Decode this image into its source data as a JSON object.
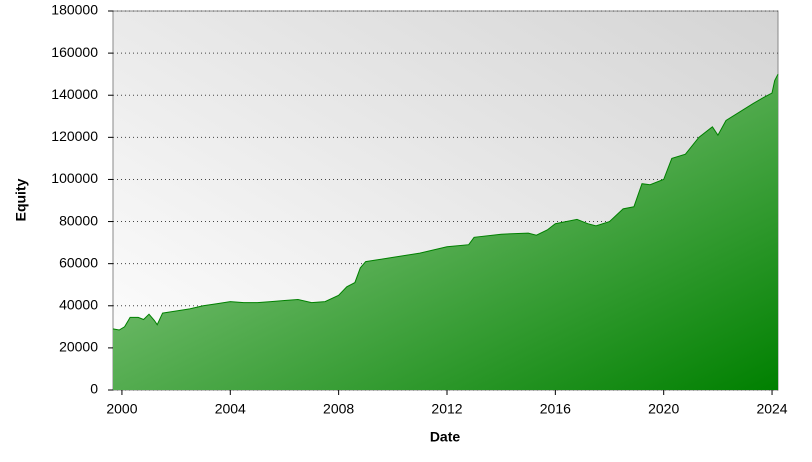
{
  "chart_data": {
    "type": "area",
    "xlabel": "Date",
    "ylabel": "Equity",
    "x": [
      1999.67,
      1999.9,
      2000.1,
      2000.3,
      2000.6,
      2000.8,
      2001.0,
      2001.2,
      2001.3,
      2001.5,
      2002.0,
      2002.5,
      2003.0,
      2003.5,
      2004.0,
      2004.5,
      2005.0,
      2005.5,
      2006.0,
      2006.5,
      2007.0,
      2007.5,
      2008.0,
      2008.3,
      2008.6,
      2008.8,
      2009.0,
      2009.5,
      2010.0,
      2011.0,
      2012.0,
      2012.8,
      2013.0,
      2014.0,
      2015.0,
      2015.3,
      2015.7,
      2016.0,
      2016.8,
      2017.2,
      2017.5,
      2018.0,
      2018.5,
      2018.9,
      2019.2,
      2019.5,
      2020.0,
      2020.3,
      2020.8,
      2021.3,
      2021.8,
      2022.0,
      2022.3,
      2022.8,
      2023.3,
      2023.7,
      2024.0,
      2024.1,
      2024.22
    ],
    "values": [
      29000,
      28500,
      30000,
      34500,
      34500,
      33500,
      36000,
      33000,
      31000,
      36500,
      37500,
      38500,
      40000,
      41000,
      42000,
      41500,
      41500,
      42000,
      42500,
      43000,
      41500,
      42000,
      45000,
      49000,
      51000,
      58000,
      61000,
      62000,
      63000,
      65000,
      68000,
      69000,
      72500,
      74000,
      74500,
      73500,
      76000,
      79000,
      81000,
      79000,
      78000,
      80000,
      86000,
      87000,
      98000,
      97500,
      100000,
      110000,
      112000,
      120000,
      125000,
      121000,
      128000,
      132000,
      136000,
      139000,
      141000,
      147000,
      150000
    ],
    "color": "#008000",
    "xlim": [
      1999.67,
      2024.22
    ],
    "xticks": [
      2000,
      2004,
      2008,
      2012,
      2016,
      2020,
      2024
    ],
    "ylim": [
      0,
      180000
    ],
    "yticks": [
      0,
      20000,
      40000,
      60000,
      80000,
      100000,
      120000,
      140000,
      160000,
      180000
    ],
    "grid": true
  }
}
